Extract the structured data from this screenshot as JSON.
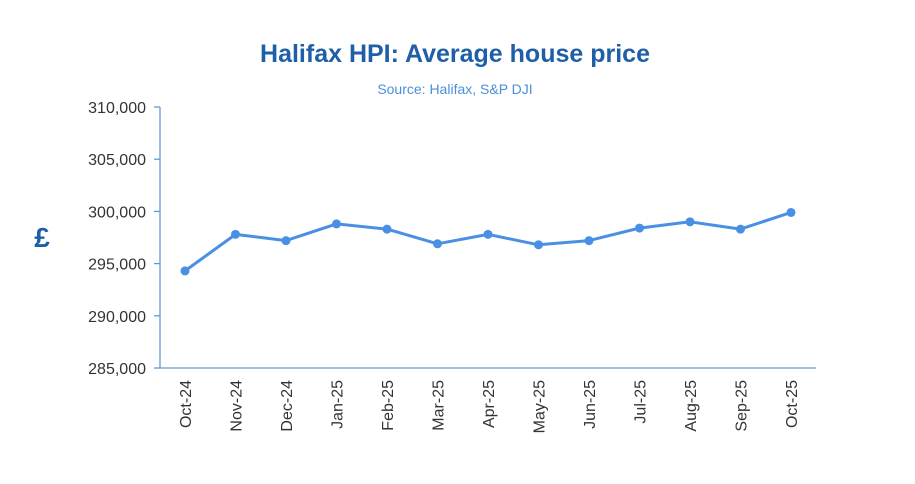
{
  "chart_data": {
    "type": "line",
    "title": "Halifax HPI: Average house price",
    "subtitle": "Source: Halifax,  S&P DJI",
    "ylabel": "£",
    "xlabel": "",
    "categories": [
      "Oct-24",
      "Nov-24",
      "Dec-24",
      "Jan-25",
      "Feb-25",
      "Mar-25",
      "Apr-25",
      "May-25",
      "Jun-25",
      "Jul-25",
      "Aug-25",
      "Sep-25",
      "Oct-25"
    ],
    "ylim": [
      285000,
      310000
    ],
    "yticks": [
      285000,
      290000,
      295000,
      300000,
      305000,
      310000
    ],
    "ytick_labels": [
      "285,000",
      "290,000",
      "295,000",
      "300,000",
      "305,000",
      "310,000"
    ],
    "series": [
      {
        "values": [
          294300,
          297800,
          297200,
          298800,
          298300,
          296900,
          297800,
          296800,
          297200,
          298400,
          299000,
          298300,
          299900
        ]
      }
    ],
    "grid": false,
    "legend": "none"
  },
  "colors": {
    "title": "#1f5fa8",
    "subtitle": "#4a90d9",
    "line": "#4a90e2",
    "axis": "#5b9bd5",
    "tick_text": "#333333"
  }
}
